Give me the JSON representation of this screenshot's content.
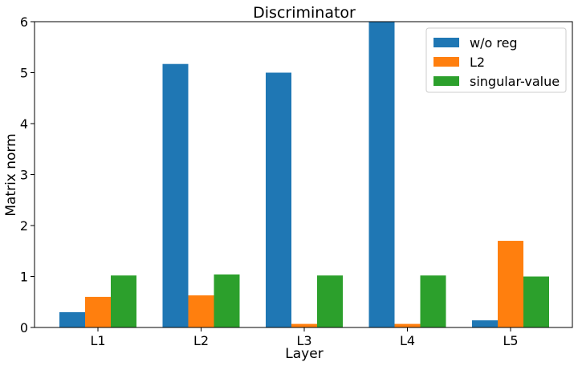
{
  "chart_data": {
    "type": "bar",
    "title": "Discriminator",
    "xlabel": "Layer",
    "ylabel": "Matrix norm",
    "categories": [
      "L1",
      "L2",
      "L3",
      "L4",
      "L5"
    ],
    "ylim": [
      0,
      6
    ],
    "yticks": [
      0,
      1,
      2,
      3,
      4,
      5,
      6
    ],
    "series": [
      {
        "name": "w/o reg",
        "color": "#1f77b4",
        "values": [
          0.3,
          5.17,
          5.0,
          6.0,
          0.14
        ]
      },
      {
        "name": "L2",
        "color": "#ff7f0e",
        "values": [
          0.6,
          0.63,
          0.07,
          0.07,
          1.7
        ]
      },
      {
        "name": "singular-value",
        "color": "#2ca02c",
        "values": [
          1.02,
          1.04,
          1.02,
          1.02,
          1.0
        ]
      }
    ],
    "legend": "top-right",
    "grid": false
  }
}
